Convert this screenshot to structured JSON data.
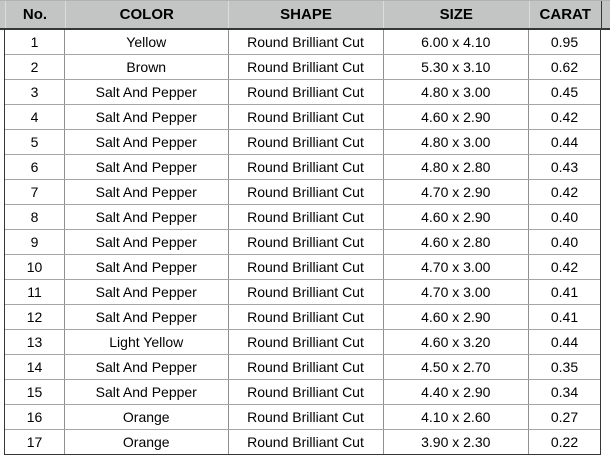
{
  "header": {
    "columns": [
      "No.",
      "COLOR",
      "SHAPE",
      "SIZE",
      "CARAT"
    ]
  },
  "table": {
    "rows": [
      {
        "no": "1",
        "color": "Yellow",
        "shape": "Round Brilliant Cut",
        "size": "6.00 x 4.10",
        "carat": "0.95"
      },
      {
        "no": "2",
        "color": "Brown",
        "shape": "Round Brilliant Cut",
        "size": "5.30 x 3.10",
        "carat": "0.62"
      },
      {
        "no": "3",
        "color": "Salt And Pepper",
        "shape": "Round Brilliant Cut",
        "size": "4.80 x 3.00",
        "carat": "0.45"
      },
      {
        "no": "4",
        "color": "Salt And Pepper",
        "shape": "Round Brilliant Cut",
        "size": "4.60 x 2.90",
        "carat": "0.42"
      },
      {
        "no": "5",
        "color": "Salt And Pepper",
        "shape": "Round Brilliant Cut",
        "size": "4.80 x 3.00",
        "carat": "0.44"
      },
      {
        "no": "6",
        "color": "Salt And Pepper",
        "shape": "Round Brilliant Cut",
        "size": "4.80 x 2.80",
        "carat": "0.43"
      },
      {
        "no": "7",
        "color": "Salt And Pepper",
        "shape": "Round Brilliant Cut",
        "size": "4.70 x 2.90",
        "carat": "0.42"
      },
      {
        "no": "8",
        "color": "Salt And Pepper",
        "shape": "Round Brilliant Cut",
        "size": "4.60 x 2.90",
        "carat": "0.40"
      },
      {
        "no": "9",
        "color": "Salt And Pepper",
        "shape": "Round Brilliant Cut",
        "size": "4.60 x 2.80",
        "carat": "0.40"
      },
      {
        "no": "10",
        "color": "Salt And Pepper",
        "shape": "Round Brilliant Cut",
        "size": "4.70 x 3.00",
        "carat": "0.42"
      },
      {
        "no": "11",
        "color": "Salt And Pepper",
        "shape": "Round Brilliant Cut",
        "size": "4.70 x 3.00",
        "carat": "0.41"
      },
      {
        "no": "12",
        "color": "Salt And Pepper",
        "shape": "Round Brilliant Cut",
        "size": "4.60 x 2.90",
        "carat": "0.41"
      },
      {
        "no": "13",
        "color": "Light Yellow",
        "shape": "Round Brilliant Cut",
        "size": "4.60 x 3.20",
        "carat": "0.44"
      },
      {
        "no": "14",
        "color": "Salt And Pepper",
        "shape": "Round Brilliant Cut",
        "size": "4.50 x 2.70",
        "carat": "0.35"
      },
      {
        "no": "15",
        "color": "Salt And Pepper",
        "shape": "Round Brilliant Cut",
        "size": "4.40 x 2.90",
        "carat": "0.34"
      },
      {
        "no": "16",
        "color": "Orange",
        "shape": "Round Brilliant Cut",
        "size": "4.10 x 2.60",
        "carat": "0.27"
      },
      {
        "no": "17",
        "color": "Orange",
        "shape": "Round Brilliant Cut",
        "size": "3.90 x 2.30",
        "carat": "0.22"
      }
    ]
  },
  "colors": {
    "header_bg": "#c2c5c3",
    "outer_border": "#363636",
    "row_line": "#a6a6a6",
    "column_line": "#8f8f8f",
    "header_separator": "#dadcdb",
    "text": "#000000"
  }
}
